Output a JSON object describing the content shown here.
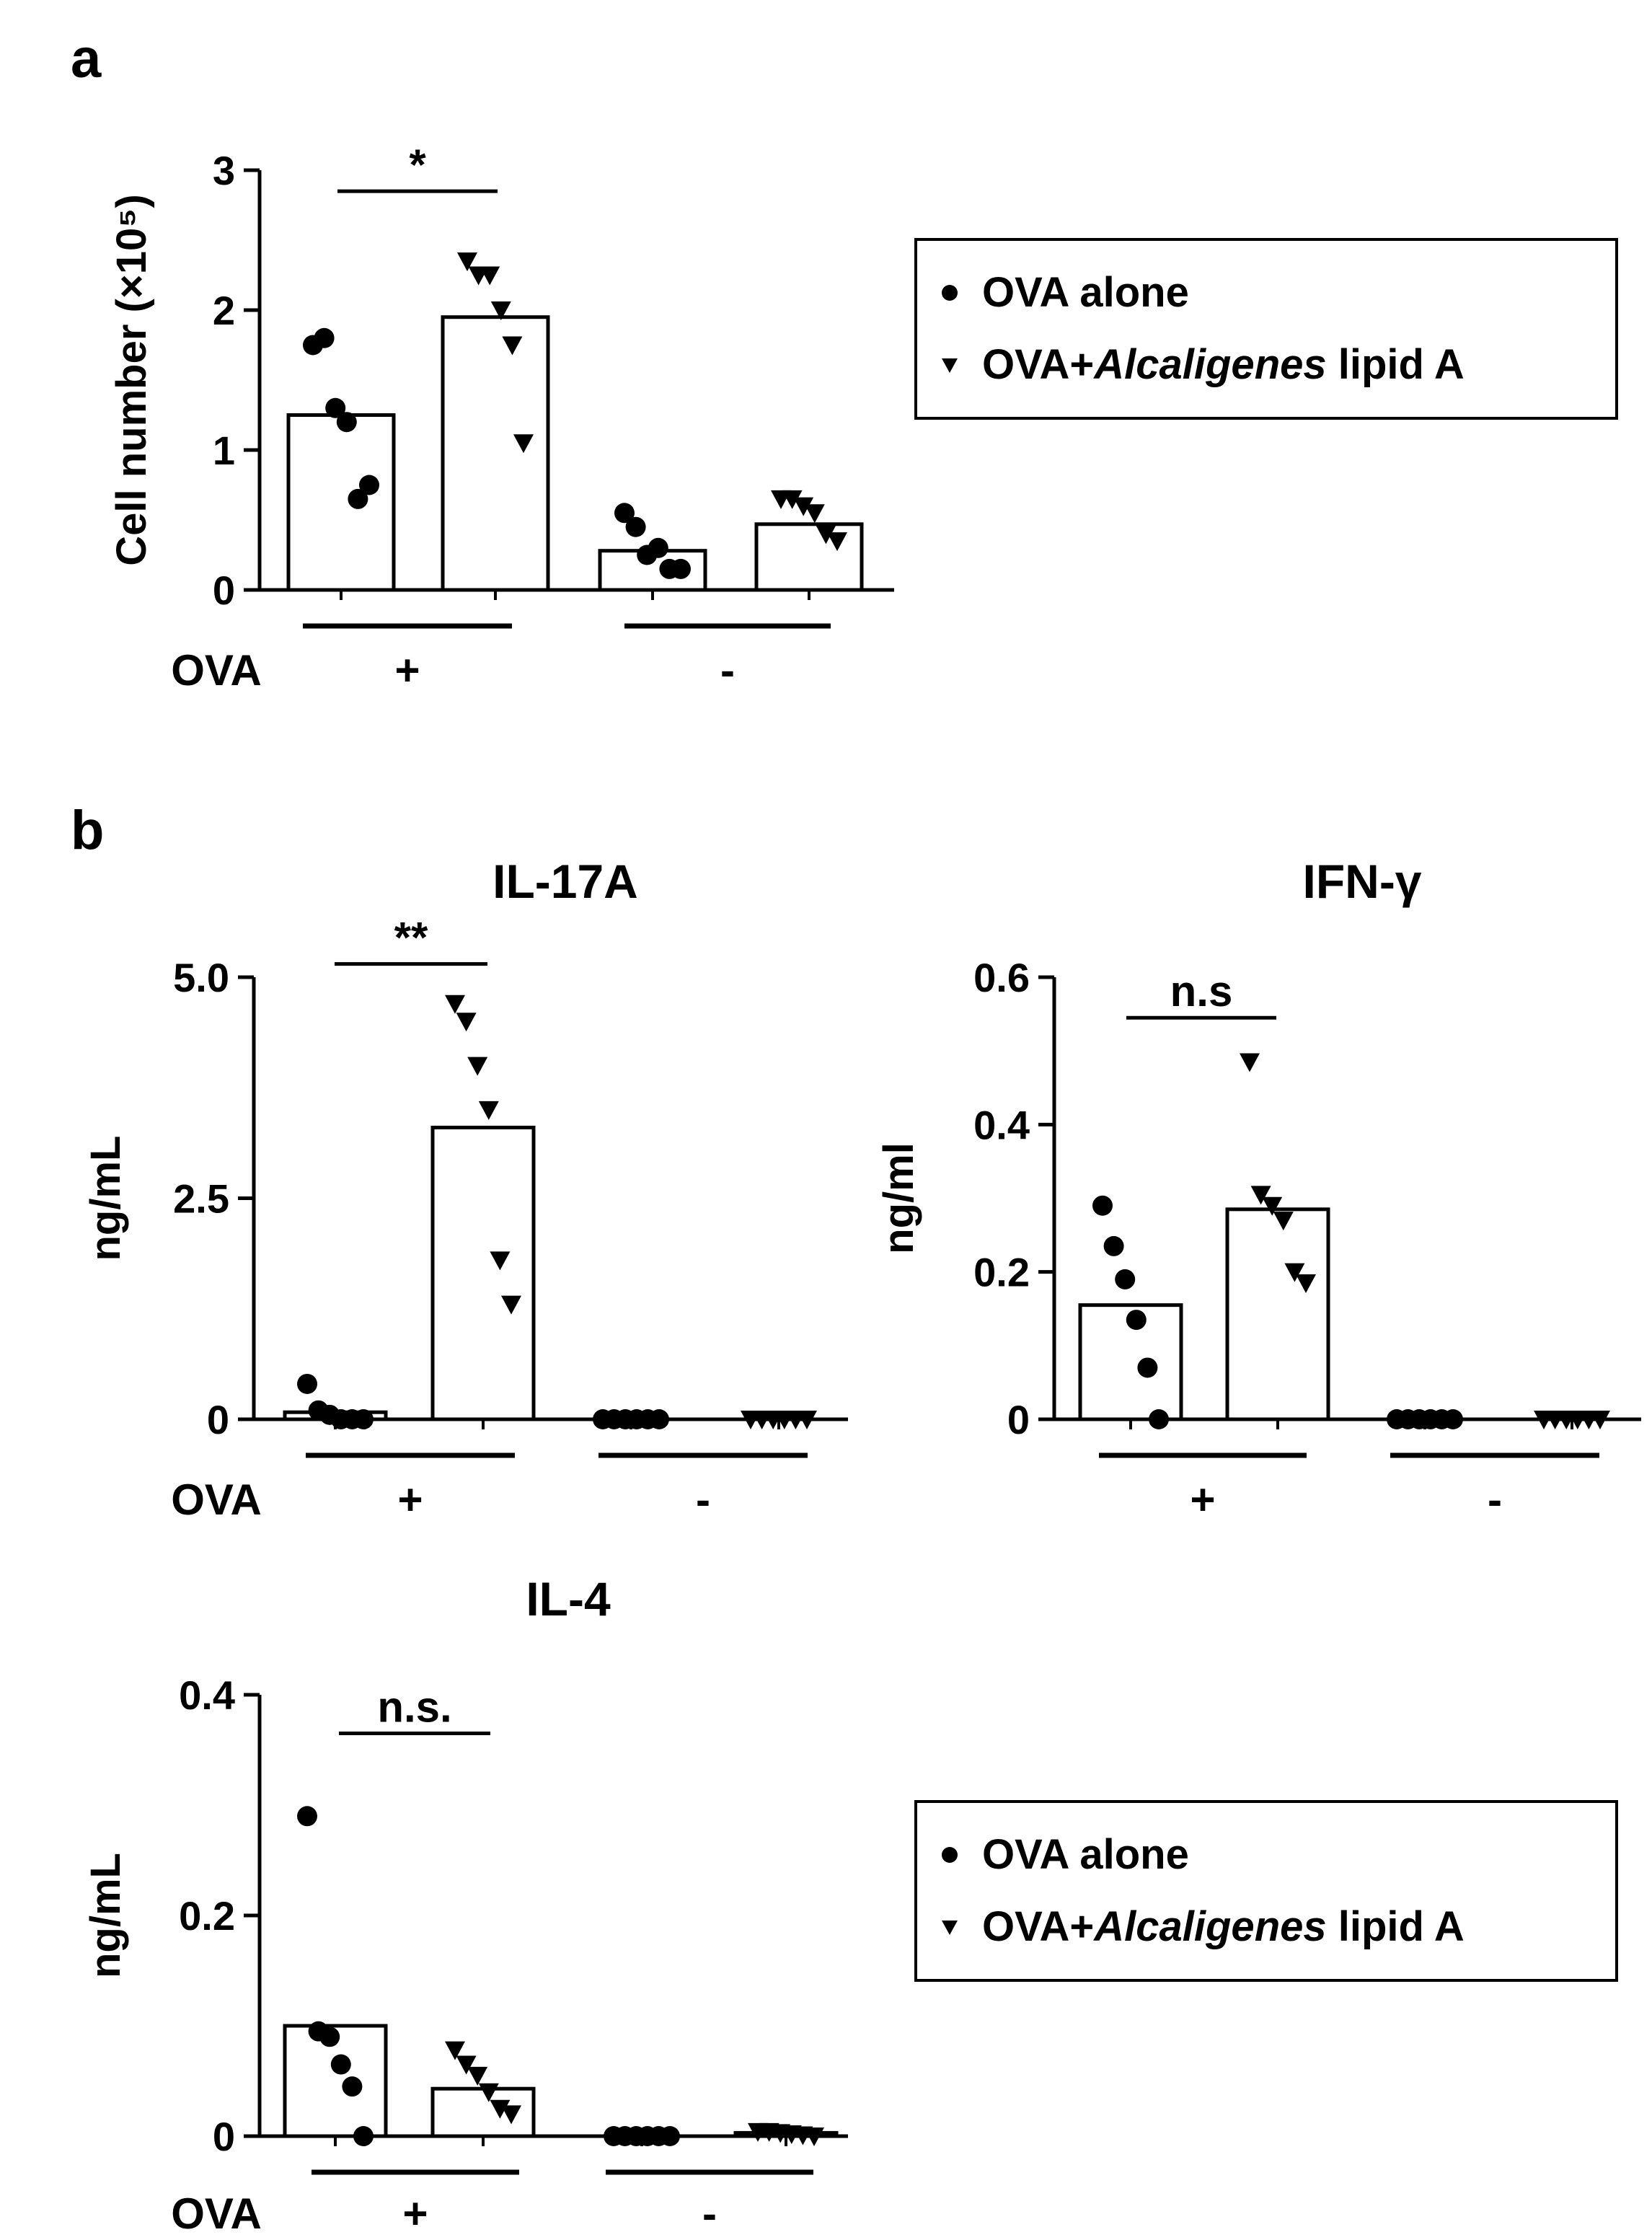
{
  "panel_labels": {
    "a": "a",
    "b": "b"
  },
  "legend": {
    "ova_alone": "OVA alone",
    "ova_lipid_prefix": "OVA+",
    "ova_lipid_italic": "Alcaligenes",
    "ova_lipid_suffix": " lipid A"
  },
  "chart_data": [
    {
      "id": "a",
      "type": "bar",
      "title": "",
      "ylabel": "Cell number (×10⁵)",
      "ylim": [
        0,
        3
      ],
      "yticks": [
        0,
        1,
        2,
        3
      ],
      "yticklabels": [
        "0",
        "1",
        "2",
        "3"
      ],
      "row_label": "OVA",
      "group_labels": [
        "+",
        "-"
      ],
      "series": [
        {
          "name": "OVA alone",
          "marker": "circle",
          "bars": [
            1.25,
            0.28
          ],
          "points": [
            [
              1.75,
              1.8,
              1.3,
              1.2,
              0.65,
              0.75
            ],
            [
              0.55,
              0.45,
              0.25,
              0.3,
              0.15,
              0.15
            ]
          ]
        },
        {
          "name": "OVA+Alcaligenes lipid A",
          "marker": "triangle",
          "bars": [
            1.95,
            0.47
          ],
          "points": [
            [
              2.35,
              2.25,
              2.25,
              2.0,
              1.75,
              1.05
            ],
            [
              0.65,
              0.65,
              0.6,
              0.55,
              0.4,
              0.35
            ]
          ]
        }
      ],
      "significance": [
        {
          "text": "*",
          "y": 2.85
        }
      ]
    },
    {
      "id": "il17a",
      "type": "bar",
      "title": "IL-17A",
      "ylabel": "ng/mL",
      "ylim": [
        0,
        5
      ],
      "yticks": [
        0,
        2.5,
        5
      ],
      "yticklabels": [
        "0",
        "2.5",
        "5.0"
      ],
      "row_label": "OVA",
      "group_labels": [
        "+",
        "-"
      ],
      "series": [
        {
          "name": "OVA alone",
          "marker": "circle",
          "bars": [
            0.08,
            0.0
          ],
          "points": [
            [
              0.4,
              0.1,
              0.05,
              0.0,
              0.0,
              0.0
            ],
            [
              0,
              0,
              0,
              0,
              0,
              0
            ]
          ]
        },
        {
          "name": "OVA+Alcaligenes lipid A",
          "marker": "triangle",
          "bars": [
            3.3,
            0.0
          ],
          "points": [
            [
              4.7,
              4.5,
              4.0,
              3.5,
              1.8,
              1.3
            ],
            [
              0,
              0,
              0,
              0,
              0,
              0
            ]
          ]
        }
      ],
      "significance": [
        {
          "text": "**",
          "y": 5.15
        }
      ]
    },
    {
      "id": "ifng",
      "type": "bar",
      "title": "IFN-γ",
      "ylabel": "ng/ml",
      "ylim": [
        0,
        0.6
      ],
      "yticks": [
        0,
        0.2,
        0.4,
        0.6
      ],
      "yticklabels": [
        "0",
        "0.2",
        "0.4",
        "0.6"
      ],
      "row_label": "",
      "group_labels": [
        "+",
        "-"
      ],
      "series": [
        {
          "name": "OVA alone",
          "marker": "circle",
          "bars": [
            0.155,
            0.0
          ],
          "points": [
            [
              0.29,
              0.235,
              0.19,
              0.135,
              0.07,
              0.0
            ],
            [
              0,
              0,
              0,
              0,
              0,
              0
            ]
          ]
        },
        {
          "name": "OVA+Alcaligenes lipid A",
          "marker": "triangle",
          "bars": [
            0.285,
            0.0
          ],
          "points": [
            [
              0.485,
              0.305,
              0.29,
              0.27,
              0.2,
              0.185
            ],
            [
              0,
              0,
              0,
              0,
              0,
              0
            ]
          ]
        }
      ],
      "significance": [
        {
          "text": "n.s",
          "y": 0.545
        }
      ]
    },
    {
      "id": "il4",
      "type": "bar",
      "title": "IL-4",
      "ylabel": "ng/mL",
      "ylim": [
        0,
        0.4
      ],
      "yticks": [
        0,
        0.2,
        0.4
      ],
      "yticklabels": [
        "0",
        "0.2",
        "0.4"
      ],
      "row_label": "OVA",
      "group_labels": [
        "+",
        "-"
      ],
      "series": [
        {
          "name": "OVA alone",
          "marker": "circle",
          "bars": [
            0.1,
            0.0
          ],
          "points": [
            [
              0.29,
              0.095,
              0.09,
              0.065,
              0.045,
              0.0
            ],
            [
              0,
              0,
              0,
              0,
              0,
              0
            ]
          ]
        },
        {
          "name": "OVA+Alcaligenes lipid A",
          "marker": "triangle",
          "bars": [
            0.043,
            0.003
          ],
          "points": [
            [
              0.078,
              0.065,
              0.055,
              0.04,
              0.025,
              0.02
            ],
            [
              0.004,
              0.004,
              0.003,
              0.002,
              0.001,
              0.0
            ]
          ]
        }
      ],
      "significance": [
        {
          "text": "n.s.",
          "y": 0.365
        }
      ]
    }
  ]
}
